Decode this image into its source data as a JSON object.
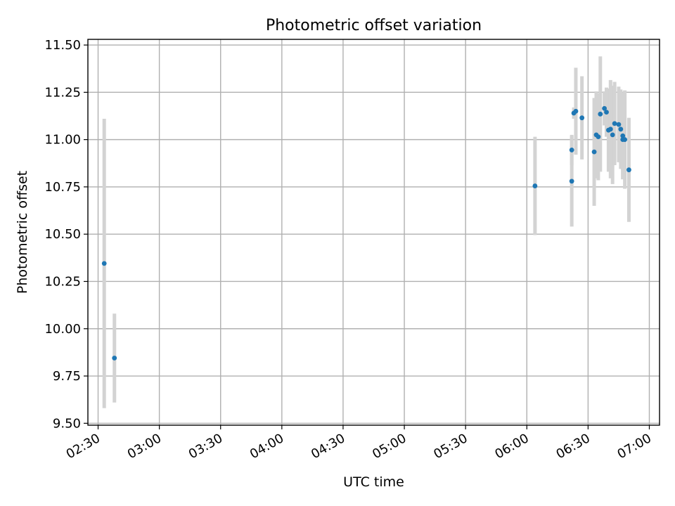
{
  "chart_data": {
    "type": "scatter",
    "title": "Photometric offset variation",
    "xlabel": "UTC time",
    "ylabel": "Photometric offset",
    "grid": true,
    "xlim": [
      "02:25",
      "07:05"
    ],
    "ylim": [
      9.49,
      11.53
    ],
    "x_ticks": [
      "02:30",
      "03:00",
      "03:30",
      "04:00",
      "04:30",
      "05:00",
      "05:30",
      "06:00",
      "06:30",
      "07:00"
    ],
    "y_ticks": [
      "9.50",
      "9.75",
      "10.00",
      "10.25",
      "10.50",
      "10.75",
      "11.00",
      "11.25",
      "11.50"
    ],
    "colors": {
      "marker": "#1f77b4",
      "errorbar": "#d3d3d3",
      "grid": "#b0b0b0"
    },
    "points": [
      {
        "x": "02:33",
        "y": 10.345,
        "err": 0.765
      },
      {
        "x": "02:38",
        "y": 9.845,
        "err": 0.235
      },
      {
        "x": "06:04",
        "y": 10.755,
        "err": 0.26
      },
      {
        "x": "06:22",
        "y": 10.78,
        "err": 0.24
      },
      {
        "x": "06:22",
        "y": 10.945,
        "err": 0.08
      },
      {
        "x": "06:23",
        "y": 11.14,
        "err": 0.03
      },
      {
        "x": "06:24",
        "y": 11.15,
        "err": 0.23
      },
      {
        "x": "06:27",
        "y": 11.115,
        "err": 0.22
      },
      {
        "x": "06:33",
        "y": 10.935,
        "err": 0.285
      },
      {
        "x": "06:34",
        "y": 11.025,
        "err": 0.23
      },
      {
        "x": "06:35",
        "y": 11.015,
        "err": 0.23
      },
      {
        "x": "06:36",
        "y": 11.135,
        "err": 0.305
      },
      {
        "x": "06:38",
        "y": 11.165,
        "err": 0.09
      },
      {
        "x": "06:39",
        "y": 11.145,
        "err": 0.13
      },
      {
        "x": "06:40",
        "y": 11.05,
        "err": 0.22
      },
      {
        "x": "06:41",
        "y": 11.055,
        "err": 0.26
      },
      {
        "x": "06:42",
        "y": 11.025,
        "err": 0.26
      },
      {
        "x": "06:43",
        "y": 11.085,
        "err": 0.22
      },
      {
        "x": "06:45",
        "y": 11.08,
        "err": 0.2
      },
      {
        "x": "06:46",
        "y": 11.055,
        "err": 0.21
      },
      {
        "x": "06:47",
        "y": 11.02,
        "err": 0.23
      },
      {
        "x": "06:47",
        "y": 11.0,
        "err": 0.21
      },
      {
        "x": "06:48",
        "y": 11.0,
        "err": 0.26
      },
      {
        "x": "06:50",
        "y": 10.84,
        "err": 0.275
      }
    ]
  }
}
